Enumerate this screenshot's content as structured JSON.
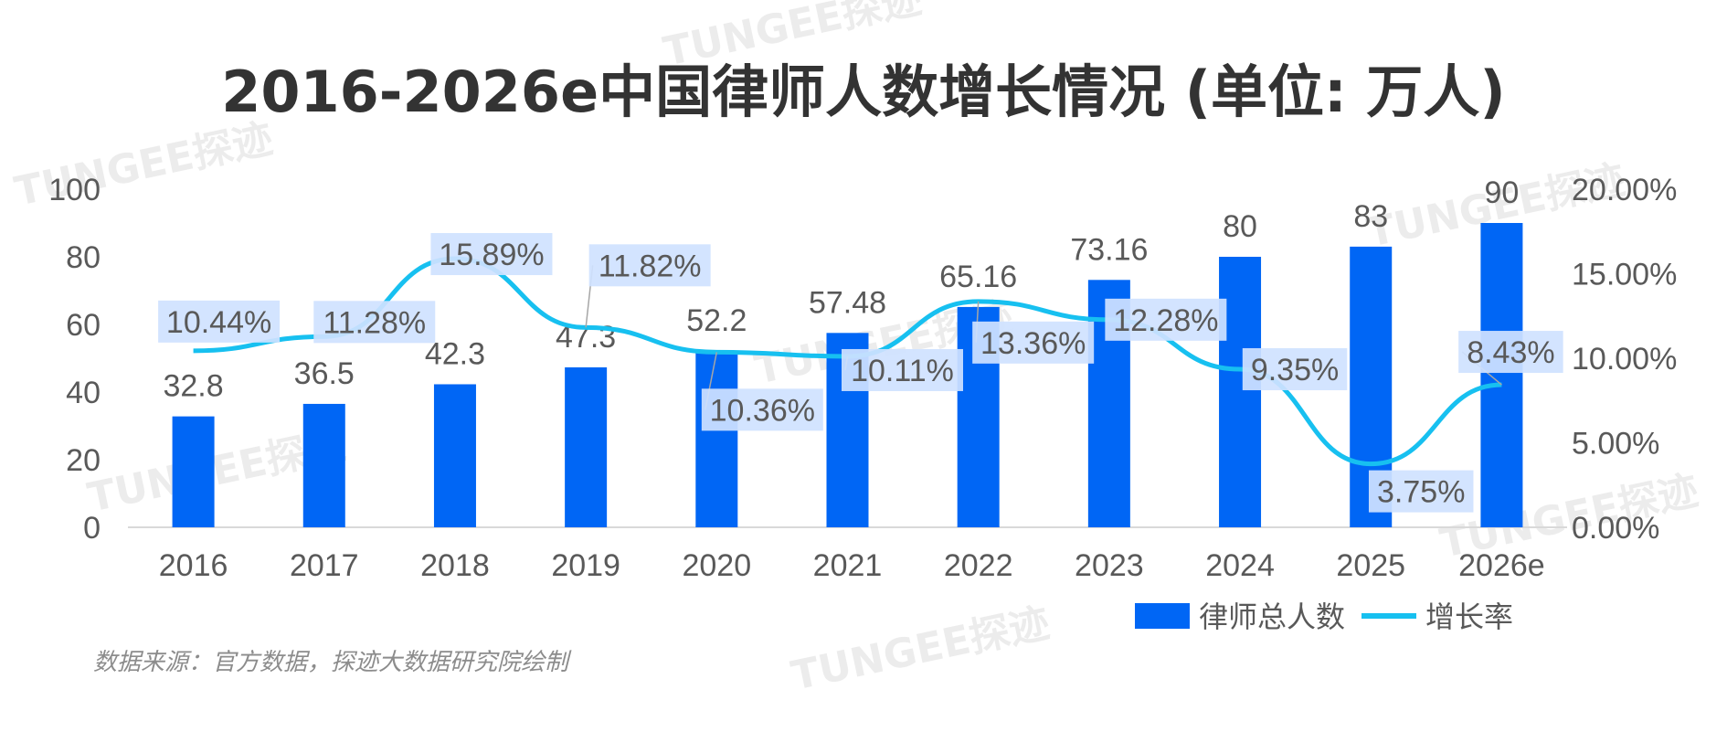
{
  "chart_data": {
    "type": "bar+line",
    "title": "2016-2026e中国律师人数增长情况 (单位: 万人)",
    "categories": [
      "2016",
      "2017",
      "2018",
      "2019",
      "2020",
      "2021",
      "2022",
      "2023",
      "2024",
      "2025",
      "2026e"
    ],
    "series": [
      {
        "name": "律师总人数",
        "type": "bar",
        "axis": "left",
        "values": [
          32.8,
          36.5,
          42.3,
          47.3,
          52.2,
          57.48,
          65.16,
          73.16,
          80,
          83,
          90
        ],
        "labels": [
          "32.8",
          "36.5",
          "42.3",
          "47.3",
          "52.2",
          "57.48",
          "65.16",
          "73.16",
          "80",
          "83",
          "90"
        ],
        "color": "#0066f5"
      },
      {
        "name": "增长率",
        "type": "line",
        "axis": "right",
        "values": [
          10.44,
          11.28,
          15.89,
          11.82,
          10.36,
          10.11,
          13.36,
          12.28,
          9.35,
          3.75,
          8.43
        ],
        "labels": [
          "10.44%",
          "11.28%",
          "15.89%",
          "11.82%",
          "10.36%",
          "10.11%",
          "13.36%",
          "12.28%",
          "9.35%",
          "3.75%",
          "8.43%"
        ],
        "color": "#17c0f0"
      }
    ],
    "y_left": {
      "range": [
        0,
        100
      ],
      "ticks": [
        "0",
        "20",
        "40",
        "60",
        "80",
        "100"
      ]
    },
    "y_right": {
      "range": [
        0,
        20
      ],
      "ticks": [
        "0.00%",
        "5.00%",
        "10.00%",
        "15.00%",
        "20.00%"
      ]
    },
    "legend_position": "bottom-right",
    "grid": false
  },
  "source_note": "数据来源：官方数据，探迹大数据研究院绘制",
  "watermark": "TUNGEE探迹"
}
